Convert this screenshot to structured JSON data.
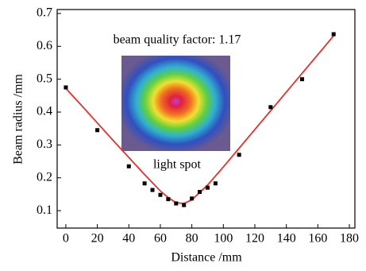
{
  "chart_data": {
    "type": "scatter",
    "x_label": "Distance /mm",
    "y_label": "Beam radius /mm",
    "annotations": [
      "beam quality factor: 1.17",
      "light spot"
    ],
    "xlim": [
      -5.5,
      183.5
    ],
    "xticks": [
      0,
      20,
      40,
      60,
      80,
      100,
      120,
      140,
      160,
      180
    ],
    "ylim": [
      0.047,
      0.712
    ],
    "yticks": [
      0.1,
      0.2,
      0.3,
      0.4,
      0.5,
      0.6,
      0.7
    ],
    "series": [
      {
        "type": "scatter",
        "color": "#000000",
        "x": [
          0,
          20,
          40,
          50,
          55,
          60,
          65,
          70,
          75,
          80,
          85,
          90,
          95,
          110,
          130,
          150,
          170
        ],
        "values": [
          0.475,
          0.345,
          0.235,
          0.183,
          0.163,
          0.148,
          0.135,
          0.122,
          0.117,
          0.137,
          0.157,
          0.17,
          0.183,
          0.27,
          0.415,
          0.5,
          0.637
        ]
      },
      {
        "type": "line",
        "color": "#e8302a",
        "x": [
          0,
          10,
          20,
          30,
          40,
          50,
          60,
          65,
          70,
          75,
          80,
          90,
          100,
          110,
          120,
          130,
          140,
          150,
          160,
          170
        ],
        "values": [
          0.472,
          0.42,
          0.367,
          0.314,
          0.262,
          0.21,
          0.16,
          0.14,
          0.124,
          0.122,
          0.133,
          0.178,
          0.233,
          0.29,
          0.347,
          0.404,
          0.461,
          0.518,
          0.575,
          0.632
        ]
      }
    ]
  }
}
